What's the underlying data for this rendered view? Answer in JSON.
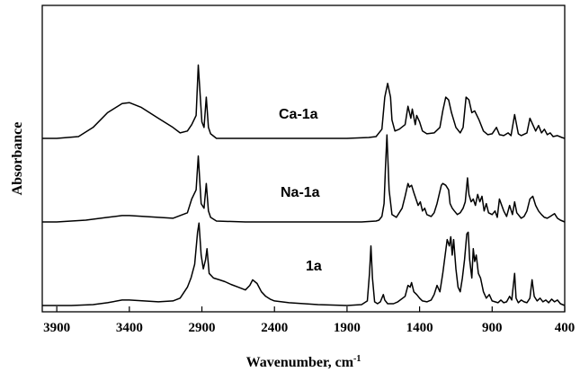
{
  "chart_data": {
    "type": "line",
    "title": "",
    "xlabel": "Wavenumber, cm",
    "xlabel_superscript": "-1",
    "ylabel": "Absorbance",
    "xlim": [
      4000,
      400
    ],
    "x_reversed": true,
    "x_ticks": [
      3900,
      3400,
      2900,
      2400,
      1900,
      1400,
      900,
      400
    ],
    "y_ticks_shown": false,
    "grid": false,
    "legend": "none (series labeled inline)",
    "series": [
      {
        "name": "Ca-1a",
        "offset": 2.0,
        "x": [
          4000,
          3900,
          3750,
          3650,
          3550,
          3450,
          3400,
          3320,
          3200,
          3100,
          3050,
          3000,
          2970,
          2940,
          2925,
          2900,
          2885,
          2870,
          2855,
          2840,
          2800,
          2700,
          2500,
          2200,
          1900,
          1750,
          1700,
          1660,
          1640,
          1620,
          1600,
          1590,
          1570,
          1540,
          1500,
          1480,
          1460,
          1450,
          1430,
          1420,
          1400,
          1380,
          1350,
          1300,
          1260,
          1240,
          1220,
          1200,
          1180,
          1150,
          1120,
          1100,
          1080,
          1060,
          1040,
          1020,
          990,
          960,
          930,
          900,
          870,
          850,
          820,
          790,
          770,
          745,
          720,
          700,
          660,
          640,
          620,
          600,
          580,
          560,
          540,
          520,
          500,
          480,
          450,
          420,
          400
        ],
        "y": [
          0.0,
          0.0,
          0.02,
          0.12,
          0.28,
          0.38,
          0.39,
          0.34,
          0.22,
          0.12,
          0.06,
          0.08,
          0.15,
          0.25,
          0.8,
          0.18,
          0.12,
          0.45,
          0.12,
          0.05,
          0.0,
          0.0,
          0.0,
          0.0,
          0.0,
          0.01,
          0.02,
          0.1,
          0.45,
          0.6,
          0.45,
          0.2,
          0.08,
          0.1,
          0.15,
          0.35,
          0.22,
          0.32,
          0.15,
          0.25,
          0.18,
          0.08,
          0.05,
          0.06,
          0.12,
          0.3,
          0.45,
          0.42,
          0.28,
          0.12,
          0.06,
          0.12,
          0.45,
          0.42,
          0.28,
          0.3,
          0.2,
          0.08,
          0.04,
          0.05,
          0.12,
          0.04,
          0.03,
          0.06,
          0.03,
          0.26,
          0.05,
          0.03,
          0.06,
          0.22,
          0.15,
          0.08,
          0.14,
          0.06,
          0.1,
          0.04,
          0.06,
          0.02,
          0.03,
          0.01,
          0.0
        ]
      },
      {
        "name": "Na-1a",
        "offset": 1.0,
        "x": [
          4000,
          3900,
          3700,
          3550,
          3450,
          3400,
          3300,
          3200,
          3100,
          3000,
          2970,
          2940,
          2925,
          2905,
          2885,
          2870,
          2855,
          2840,
          2800,
          2600,
          2300,
          2000,
          1800,
          1700,
          1680,
          1660,
          1645,
          1635,
          1625,
          1610,
          1590,
          1560,
          1520,
          1500,
          1480,
          1470,
          1455,
          1440,
          1425,
          1410,
          1395,
          1380,
          1365,
          1350,
          1320,
          1300,
          1280,
          1250,
          1240,
          1220,
          1200,
          1190,
          1175,
          1160,
          1140,
          1120,
          1100,
          1085,
          1070,
          1060,
          1045,
          1030,
          1015,
          1000,
          985,
          970,
          955,
          940,
          925,
          900,
          880,
          865,
          850,
          820,
          800,
          780,
          760,
          745,
          730,
          700,
          680,
          660,
          640,
          620,
          600,
          580,
          560,
          540,
          520,
          500,
          470,
          450,
          430,
          400
        ],
        "y": [
          0.0,
          0.0,
          0.02,
          0.05,
          0.07,
          0.07,
          0.06,
          0.05,
          0.04,
          0.1,
          0.25,
          0.35,
          0.72,
          0.2,
          0.15,
          0.42,
          0.12,
          0.05,
          0.01,
          0.0,
          0.0,
          0.0,
          0.0,
          0.01,
          0.02,
          0.06,
          0.2,
          0.6,
          0.95,
          0.35,
          0.08,
          0.05,
          0.15,
          0.28,
          0.42,
          0.38,
          0.4,
          0.32,
          0.25,
          0.18,
          0.22,
          0.12,
          0.15,
          0.08,
          0.06,
          0.1,
          0.2,
          0.4,
          0.42,
          0.4,
          0.35,
          0.2,
          0.15,
          0.12,
          0.08,
          0.1,
          0.15,
          0.22,
          0.48,
          0.3,
          0.22,
          0.25,
          0.18,
          0.3,
          0.22,
          0.28,
          0.12,
          0.2,
          0.1,
          0.08,
          0.12,
          0.05,
          0.25,
          0.12,
          0.06,
          0.18,
          0.08,
          0.22,
          0.1,
          0.04,
          0.06,
          0.12,
          0.25,
          0.28,
          0.18,
          0.12,
          0.08,
          0.05,
          0.04,
          0.06,
          0.09,
          0.04,
          0.02,
          0.0
        ]
      },
      {
        "name": "1a",
        "offset": 0.0,
        "x": [
          4000,
          3900,
          3800,
          3650,
          3550,
          3450,
          3400,
          3300,
          3200,
          3100,
          3050,
          3000,
          2975,
          2950,
          2930,
          2920,
          2905,
          2890,
          2875,
          2865,
          2850,
          2820,
          2780,
          2740,
          2700,
          2650,
          2600,
          2570,
          2550,
          2520,
          2490,
          2460,
          2430,
          2400,
          2300,
          2100,
          1900,
          1800,
          1760,
          1745,
          1735,
          1725,
          1710,
          1690,
          1670,
          1650,
          1640,
          1620,
          1580,
          1550,
          1500,
          1480,
          1465,
          1455,
          1440,
          1420,
          1400,
          1380,
          1350,
          1320,
          1300,
          1280,
          1260,
          1240,
          1220,
          1210,
          1195,
          1185,
          1175,
          1165,
          1150,
          1135,
          1120,
          1105,
          1090,
          1075,
          1065,
          1055,
          1040,
          1030,
          1020,
          1010,
          995,
          980,
          960,
          940,
          920,
          900,
          880,
          860,
          840,
          820,
          800,
          780,
          765,
          745,
          735,
          720,
          700,
          680,
          660,
          640,
          625,
          610,
          590,
          570,
          550,
          530,
          510,
          490,
          470,
          450,
          430,
          400
        ],
        "y": [
          0.0,
          0.0,
          0.0,
          0.01,
          0.03,
          0.06,
          0.06,
          0.05,
          0.04,
          0.05,
          0.08,
          0.2,
          0.3,
          0.45,
          0.8,
          0.9,
          0.55,
          0.4,
          0.5,
          0.62,
          0.35,
          0.3,
          0.28,
          0.26,
          0.23,
          0.2,
          0.17,
          0.22,
          0.28,
          0.24,
          0.15,
          0.1,
          0.07,
          0.05,
          0.03,
          0.01,
          0.0,
          0.01,
          0.05,
          0.35,
          0.65,
          0.3,
          0.04,
          0.02,
          0.04,
          0.12,
          0.06,
          0.02,
          0.02,
          0.04,
          0.1,
          0.22,
          0.2,
          0.25,
          0.15,
          0.12,
          0.08,
          0.05,
          0.04,
          0.06,
          0.12,
          0.22,
          0.15,
          0.35,
          0.6,
          0.72,
          0.65,
          0.75,
          0.55,
          0.72,
          0.4,
          0.2,
          0.15,
          0.3,
          0.5,
          0.78,
          0.8,
          0.5,
          0.3,
          0.62,
          0.48,
          0.55,
          0.35,
          0.3,
          0.15,
          0.08,
          0.12,
          0.05,
          0.04,
          0.03,
          0.06,
          0.03,
          0.04,
          0.1,
          0.06,
          0.35,
          0.08,
          0.03,
          0.06,
          0.04,
          0.03,
          0.08,
          0.28,
          0.1,
          0.05,
          0.08,
          0.04,
          0.06,
          0.03,
          0.07,
          0.04,
          0.06,
          0.02,
          0.0
        ]
      }
    ]
  }
}
